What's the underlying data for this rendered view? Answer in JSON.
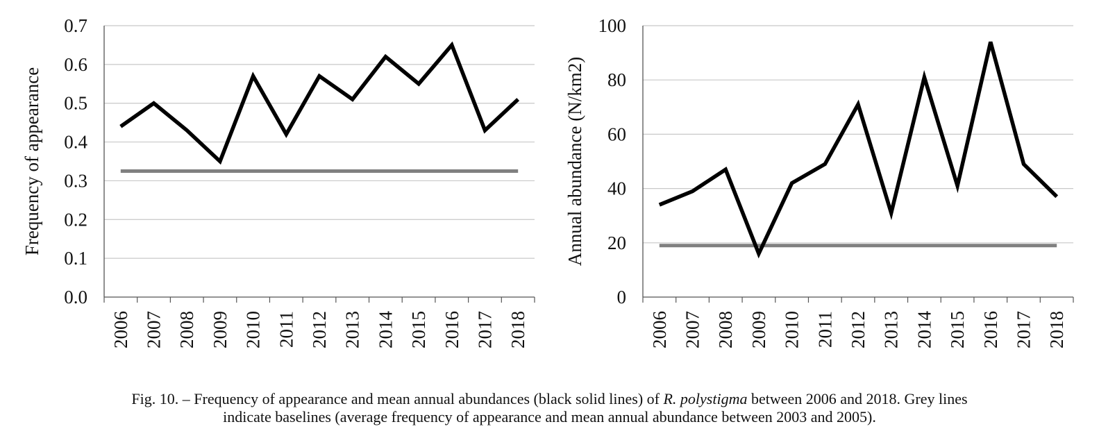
{
  "chart_data": [
    {
      "type": "line",
      "ylabel": "Frequency of appearance",
      "xlabel": "",
      "categories": [
        "2006",
        "2007",
        "2008",
        "2009",
        "2010",
        "2011",
        "2012",
        "2013",
        "2014",
        "2015",
        "2016",
        "2017",
        "2018"
      ],
      "yticks": [
        "0.0",
        "0.1",
        "0.2",
        "0.3",
        "0.4",
        "0.5",
        "0.6",
        "0.7"
      ],
      "ylim": [
        0,
        0.7
      ],
      "grid": true,
      "series": [
        {
          "color": "#000000",
          "values": [
            0.44,
            0.5,
            0.43,
            0.35,
            0.57,
            0.42,
            0.57,
            0.51,
            0.62,
            0.55,
            0.65,
            0.43,
            0.51
          ]
        },
        {
          "color": "#808080",
          "values": [
            0.325,
            0.325,
            0.325,
            0.325,
            0.325,
            0.325,
            0.325,
            0.325,
            0.325,
            0.325,
            0.325,
            0.325,
            0.325
          ]
        }
      ]
    },
    {
      "type": "line",
      "ylabel": "Annual abundance (N/km2)",
      "xlabel": "",
      "categories": [
        "2006",
        "2007",
        "2008",
        "2009",
        "2010",
        "2011",
        "2012",
        "2013",
        "2014",
        "2015",
        "2016",
        "2017",
        "2018"
      ],
      "yticks": [
        "0",
        "20",
        "40",
        "60",
        "80",
        "100"
      ],
      "ylim": [
        0,
        100
      ],
      "grid": true,
      "series": [
        {
          "color": "#000000",
          "values": [
            34,
            39,
            47,
            16,
            42,
            49,
            71,
            31,
            81,
            41,
            94,
            49,
            37
          ]
        },
        {
          "color": "#808080",
          "values": [
            19,
            19,
            19,
            19,
            19,
            19,
            19,
            19,
            19,
            19,
            19,
            19,
            19
          ]
        }
      ]
    }
  ],
  "caption": {
    "prefix": "Fig. 10. – Frequency of appearance and mean annual abundances (black solid lines) of ",
    "species": "R. polystigma",
    "suffix": " between 2006 and 2018. Grey lines",
    "line2": "indicate baselines (average frequency of appearance and mean annual abundance between 2003 and 2005)."
  }
}
